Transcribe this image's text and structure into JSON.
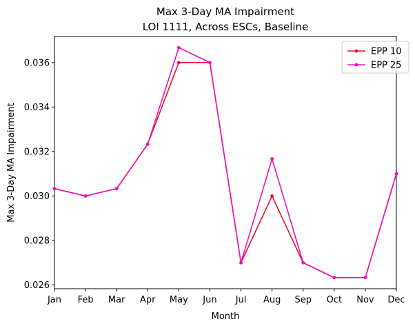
{
  "chart_data": {
    "type": "line",
    "title": "Max 3-Day MA Impairment",
    "subtitle": "LOI 1111, Across ESCs, Baseline",
    "xlabel": "Month",
    "ylabel": "Max 3-Day MA Impairment",
    "categories": [
      "Jan",
      "Feb",
      "Mar",
      "Apr",
      "May",
      "Jun",
      "Jul",
      "Aug",
      "Sep",
      "Oct",
      "Nov",
      "Dec"
    ],
    "ylim": [
      0.02583,
      0.03717
    ],
    "yticks": [
      0.026,
      0.028,
      0.03,
      0.032,
      0.034,
      0.036
    ],
    "ytick_labels": [
      "0.026",
      "0.028",
      "0.030",
      "0.032",
      "0.034",
      "0.036"
    ],
    "grid": false,
    "legend_position": "top-right",
    "series": [
      {
        "name": "EPP 10",
        "color": "#e8112d",
        "values": [
          0.03033,
          0.03,
          0.03033,
          0.03233,
          0.036,
          0.036,
          0.027,
          0.03,
          0.027,
          0.02633,
          0.02633,
          0.031
        ]
      },
      {
        "name": "EPP 25",
        "color": "#f00fbe",
        "values": [
          0.03033,
          0.03,
          0.03033,
          0.03233,
          0.03667,
          0.036,
          0.027,
          0.03167,
          0.027,
          0.02633,
          0.02633,
          0.031
        ]
      }
    ]
  }
}
